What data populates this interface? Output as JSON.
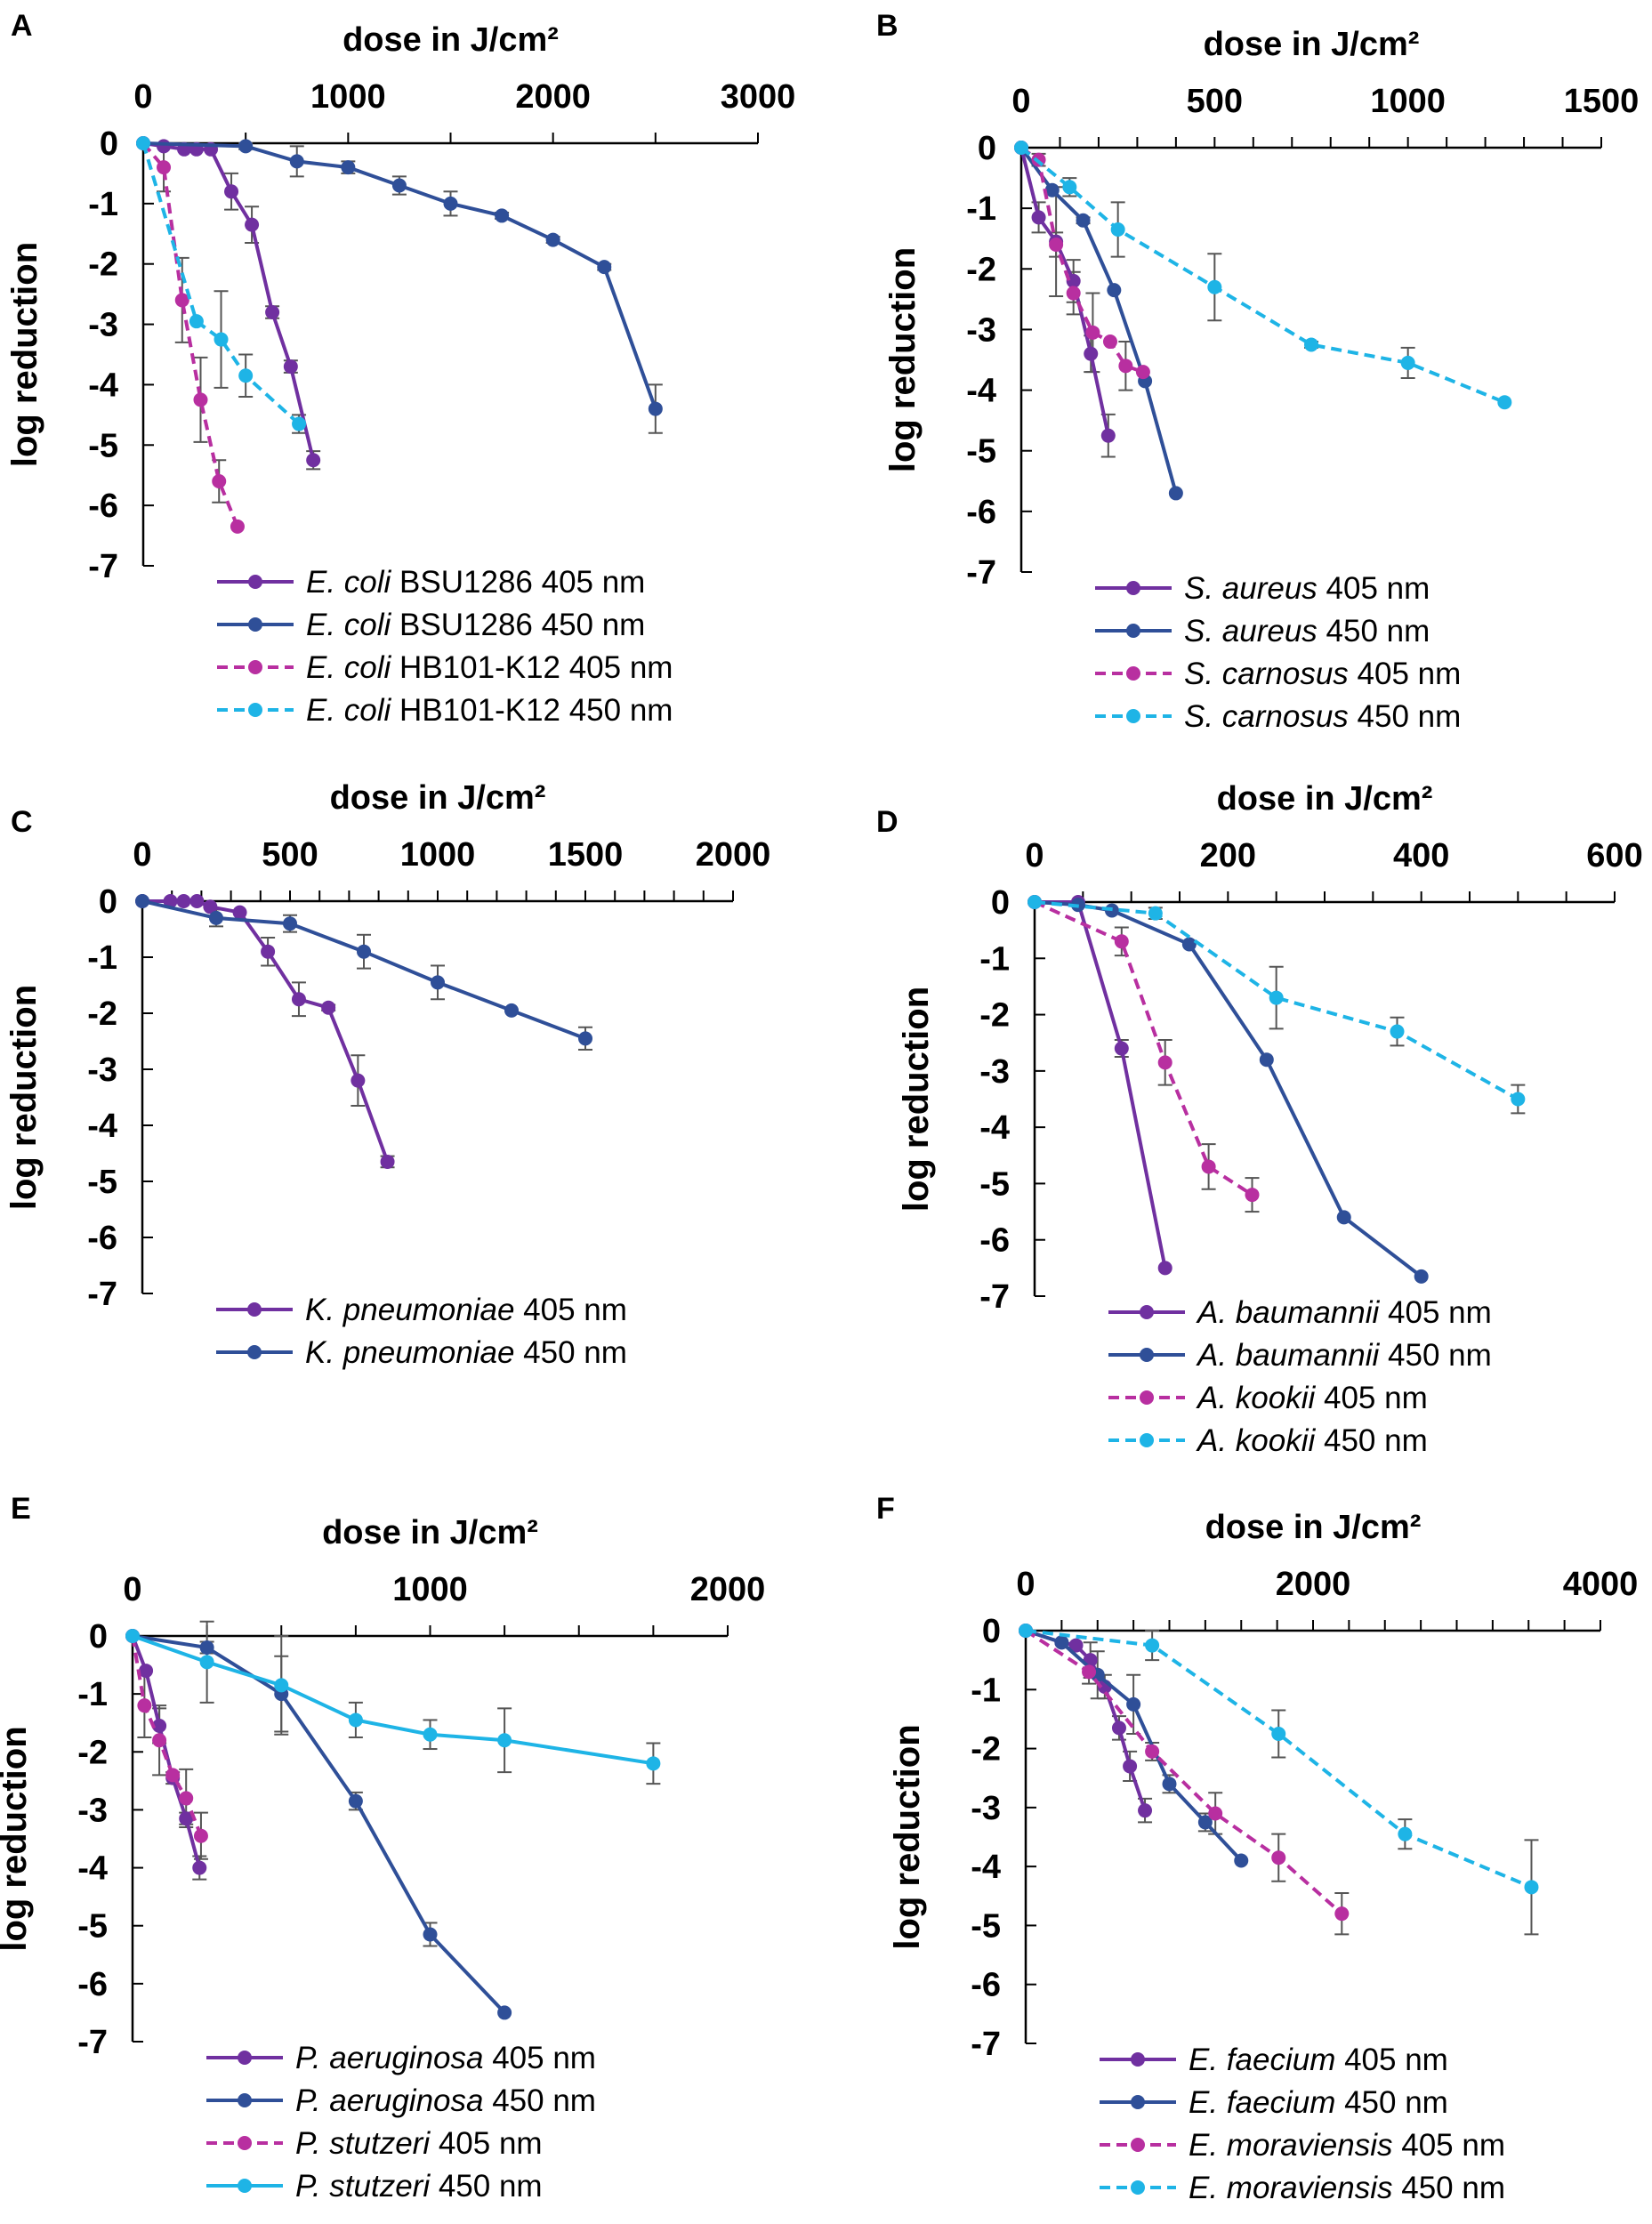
{
  "chart_data": [
    {
      "panel": "A",
      "type": "line",
      "title": "dose in J/cm²",
      "ylabel": "log reduction",
      "xlim": [
        0,
        3000
      ],
      "xticks": [
        0,
        1000,
        2000,
        3000
      ],
      "ylim": [
        -7,
        0
      ],
      "yticks": [
        0,
        -1,
        -2,
        -3,
        -4,
        -5,
        -6,
        -7
      ],
      "series": [
        {
          "species": "E. coli",
          "name": "BSU1286 405 nm",
          "color": "#7030A0",
          "dash": false,
          "x": [
            0,
            100,
            200,
            260,
            330,
            430,
            530,
            630,
            720,
            830
          ],
          "y": [
            0,
            -0.05,
            -0.1,
            -0.1,
            -0.1,
            -0.8,
            -1.35,
            -2.8,
            -3.7,
            -5.25
          ],
          "err": [
            0,
            0,
            0,
            0,
            0,
            0.3,
            0.3,
            0.1,
            0.1,
            0.15
          ]
        },
        {
          "species": "E. coli",
          "name": "BSU1286 450 nm",
          "color": "#2F4F98",
          "dash": false,
          "x": [
            0,
            500,
            750,
            1000,
            1250,
            1500,
            1750,
            2000,
            2250,
            2500
          ],
          "y": [
            0,
            -0.05,
            -0.3,
            -0.4,
            -0.7,
            -1.0,
            -1.2,
            -1.6,
            -2.05,
            -4.4
          ],
          "err": [
            0,
            0.05,
            0.25,
            0.1,
            0.15,
            0.2,
            0.05,
            0.05,
            0.05,
            0.4
          ]
        },
        {
          "species": "E. coli",
          "name": "HB101-K12 405 nm",
          "color": "#B82FA0",
          "dash": true,
          "x": [
            0,
            100,
            190,
            280,
            370,
            460
          ],
          "y": [
            0,
            -0.4,
            -2.6,
            -4.25,
            -5.6,
            -6.35
          ],
          "err": [
            0,
            0.4,
            0.7,
            0.7,
            0.35,
            0
          ]
        },
        {
          "species": "E. coli",
          "name": "HB101-K12 450 nm",
          "color": "#1EB4E6",
          "dash": true,
          "x": [
            0,
            260,
            380,
            500,
            760
          ],
          "y": [
            0,
            -2.95,
            -3.25,
            -3.85,
            -4.65
          ],
          "err": [
            0,
            0,
            0.8,
            0.35,
            0.15
          ]
        }
      ]
    },
    {
      "panel": "B",
      "type": "line",
      "title": "dose in J/cm²",
      "ylabel": "log reduction",
      "xlim": [
        0,
        1500
      ],
      "xticks": [
        0,
        500,
        1000,
        1500
      ],
      "ylim": [
        -7,
        0
      ],
      "yticks": [
        0,
        -1,
        -2,
        -3,
        -4,
        -5,
        -6,
        -7
      ],
      "series": [
        {
          "species": "S. aureus",
          "name": "405 nm",
          "color": "#7030A0",
          "dash": false,
          "x": [
            0,
            45,
            90,
            135,
            180,
            225
          ],
          "y": [
            0,
            -1.15,
            -1.55,
            -2.2,
            -3.4,
            -4.75
          ],
          "err": [
            0,
            0.25,
            0.9,
            0.35,
            0.3,
            0.35
          ]
        },
        {
          "species": "S. aureus",
          "name": "450 nm",
          "color": "#2F4F98",
          "dash": false,
          "x": [
            0,
            80,
            160,
            240,
            320,
            400
          ],
          "y": [
            0,
            -0.7,
            -1.2,
            -2.35,
            -3.85,
            -5.7
          ],
          "err": [
            0,
            0,
            0.05,
            0,
            0,
            0
          ]
        },
        {
          "species": "S. carnosus",
          "name": "405 nm",
          "color": "#B82FA0",
          "dash": true,
          "x": [
            0,
            45,
            90,
            135,
            185,
            230,
            270,
            315
          ],
          "y": [
            0,
            -0.2,
            -1.6,
            -2.4,
            -3.05,
            -3.2,
            -3.6,
            -3.7
          ],
          "err": [
            0,
            0.1,
            0.2,
            0.35,
            0.65,
            0,
            0.4,
            0
          ]
        },
        {
          "species": "S. carnosus",
          "name": "450 nm",
          "color": "#1EB4E6",
          "dash": true,
          "x": [
            0,
            125,
            250,
            500,
            750,
            1000,
            1250
          ],
          "y": [
            0,
            -0.65,
            -1.35,
            -2.3,
            -3.25,
            -3.55,
            -4.2
          ],
          "err": [
            0,
            0.15,
            0.45,
            0.55,
            0.05,
            0.25,
            0
          ]
        }
      ]
    },
    {
      "panel": "C",
      "type": "line",
      "title": "dose in J/cm²",
      "ylabel": "log reduction",
      "xlim": [
        0,
        2000
      ],
      "xticks": [
        0,
        500,
        1000,
        1500,
        2000
      ],
      "ylim": [
        -7,
        0
      ],
      "yticks": [
        0,
        -1,
        -2,
        -3,
        -4,
        -5,
        -6,
        -7
      ],
      "series": [
        {
          "species": "K. pneumoniae",
          "name": "405 nm",
          "color": "#7030A0",
          "dash": false,
          "x": [
            0,
            95,
            140,
            185,
            230,
            330,
            425,
            530,
            630,
            730,
            830
          ],
          "y": [
            0,
            0,
            0,
            0,
            -0.1,
            -0.2,
            -0.9,
            -1.75,
            -1.9,
            -3.2,
            -4.65
          ],
          "err": [
            0,
            0,
            0,
            0,
            0,
            0,
            0.25,
            0.3,
            0.05,
            0.45,
            0.1
          ]
        },
        {
          "species": "K. pneumoniae",
          "name": "450 nm",
          "color": "#2F4F98",
          "dash": false,
          "x": [
            0,
            250,
            500,
            750,
            1000,
            1250,
            1500
          ],
          "y": [
            0,
            -0.3,
            -0.4,
            -0.9,
            -1.45,
            -1.95,
            -2.45
          ],
          "err": [
            0,
            0.15,
            0.15,
            0.3,
            0.3,
            0,
            0.2
          ]
        }
      ]
    },
    {
      "panel": "D",
      "type": "line",
      "title": "dose in J/cm²",
      "ylabel": "log reduction",
      "xlim": [
        0,
        600
      ],
      "xticks": [
        0,
        200,
        400,
        600
      ],
      "ylim": [
        -7,
        0
      ],
      "yticks": [
        0,
        -1,
        -2,
        -3,
        -4,
        -5,
        -6,
        -7
      ],
      "series": [
        {
          "species": "A. baumannii",
          "name": "405 nm",
          "color": "#7030A0",
          "dash": false,
          "x": [
            0,
            45,
            90,
            135
          ],
          "y": [
            0,
            0,
            -2.6,
            -6.5
          ],
          "err": [
            0,
            0,
            0.15,
            0
          ]
        },
        {
          "species": "A. baumannii",
          "name": "450 nm",
          "color": "#2F4F98",
          "dash": false,
          "x": [
            0,
            45,
            80,
            160,
            240,
            320,
            400
          ],
          "y": [
            0,
            -0.05,
            -0.15,
            -0.75,
            -2.8,
            -5.6,
            -6.65
          ],
          "err": [
            0,
            0,
            0,
            0,
            0,
            0,
            0
          ]
        },
        {
          "species": "A. kookii",
          "name": "405 nm",
          "color": "#B82FA0",
          "dash": true,
          "x": [
            0,
            90,
            135,
            180,
            225
          ],
          "y": [
            0,
            -0.7,
            -2.85,
            -4.7,
            -5.2
          ],
          "err": [
            0,
            0.25,
            0.4,
            0.4,
            0.3
          ]
        },
        {
          "species": "A. kookii",
          "name": "450 nm",
          "color": "#1EB4E6",
          "dash": true,
          "x": [
            0,
            125,
            250,
            375,
            500
          ],
          "y": [
            0,
            -0.2,
            -1.7,
            -2.3,
            -3.5
          ],
          "err": [
            0,
            0.1,
            0.55,
            0.25,
            0.25
          ]
        }
      ]
    },
    {
      "panel": "E",
      "type": "line",
      "title": "dose in J/cm²",
      "ylabel": "log reduction",
      "xlim": [
        0,
        2000
      ],
      "xticks": [
        0,
        1000,
        2000
      ],
      "ylim": [
        -7,
        0
      ],
      "yticks": [
        0,
        -1,
        -2,
        -3,
        -4,
        -5,
        -6,
        -7
      ],
      "series": [
        {
          "species": "P. aeruginosa",
          "name": "405 nm",
          "color": "#7030A0",
          "dash": false,
          "x": [
            0,
            45,
            90,
            135,
            180,
            225
          ],
          "y": [
            0,
            -0.6,
            -1.55,
            -2.45,
            -3.15,
            -4.0
          ],
          "err": [
            0,
            0,
            0.3,
            0.1,
            0.1,
            0.2
          ]
        },
        {
          "species": "P. aeruginosa",
          "name": "450 nm",
          "color": "#2F4F98",
          "dash": false,
          "x": [
            0,
            250,
            500,
            750,
            1000,
            1250
          ],
          "y": [
            0,
            -0.2,
            -1.0,
            -2.85,
            -5.15,
            -6.5
          ],
          "err": [
            0,
            0.1,
            0.65,
            0.15,
            0.2,
            0
          ]
        },
        {
          "species": "P. stutzeri",
          "name": " 405 nm",
          "color": "#B82FA0",
          "dash": true,
          "x": [
            0,
            40,
            90,
            135,
            180,
            230
          ],
          "y": [
            0,
            -1.2,
            -1.8,
            -2.4,
            -2.8,
            -3.45
          ],
          "err": [
            0,
            0.55,
            0.6,
            0,
            0.5,
            0.4
          ]
        },
        {
          "species": "P. stutzeri",
          "name": " 450 nm",
          "color": "#1EB4E6",
          "dash": false,
          "x": [
            0,
            250,
            500,
            750,
            1000,
            1250,
            1750
          ],
          "y": [
            0,
            -0.45,
            -0.85,
            -1.45,
            -1.7,
            -1.8,
            -2.2
          ],
          "err": [
            0,
            0.7,
            0.85,
            0.3,
            0.25,
            0.55,
            0.35
          ]
        }
      ]
    },
    {
      "panel": "F",
      "type": "line",
      "title": "dose in J/cm²",
      "ylabel": "log reduction",
      "xlim": [
        0,
        4000
      ],
      "xticks": [
        0,
        2000,
        4000
      ],
      "ylim": [
        -7,
        0
      ],
      "yticks": [
        0,
        -1,
        -2,
        -3,
        -4,
        -5,
        -6,
        -7
      ],
      "series": [
        {
          "species": "E. faecium",
          "name": "405 nm",
          "color": "#7030A0",
          "dash": false,
          "x": [
            0,
            250,
            350,
            450,
            550,
            650,
            725,
            830
          ],
          "y": [
            0,
            -0.2,
            -0.25,
            -0.5,
            -0.95,
            -1.65,
            -2.3,
            -3.05
          ],
          "err": [
            0,
            0,
            0,
            0.3,
            0.2,
            0.2,
            0.25,
            0.2
          ]
        },
        {
          "species": "E. faecium",
          "name": "450 nm",
          "color": "#2F4F98",
          "dash": false,
          "x": [
            0,
            250,
            500,
            750,
            1000,
            1250,
            1500
          ],
          "y": [
            0,
            -0.2,
            -0.75,
            -1.25,
            -2.6,
            -3.25,
            -3.9
          ],
          "err": [
            0,
            0,
            0.4,
            0.5,
            0.15,
            0.15,
            0
          ]
        },
        {
          "species": "E. moraviensis",
          "name": "405 nm",
          "color": "#B82FA0",
          "dash": true,
          "x": [
            0,
            440,
            880,
            1320,
            1760,
            2200
          ],
          "y": [
            0,
            -0.7,
            -2.05,
            -3.1,
            -3.85,
            -4.8
          ],
          "err": [
            0,
            0.2,
            0.15,
            0.35,
            0.4,
            0.35
          ]
        },
        {
          "species": "E. moraviensis",
          "name": "450 nm",
          "color": "#1EB4E6",
          "dash": true,
          "x": [
            0,
            880,
            1760,
            2640,
            3520
          ],
          "y": [
            0,
            -0.25,
            -1.75,
            -3.45,
            -4.35
          ],
          "err": [
            0,
            0.25,
            0.4,
            0.25,
            0.8
          ]
        }
      ]
    }
  ],
  "colors": {
    "error_bar": "#555555",
    "axis": "#000000"
  }
}
